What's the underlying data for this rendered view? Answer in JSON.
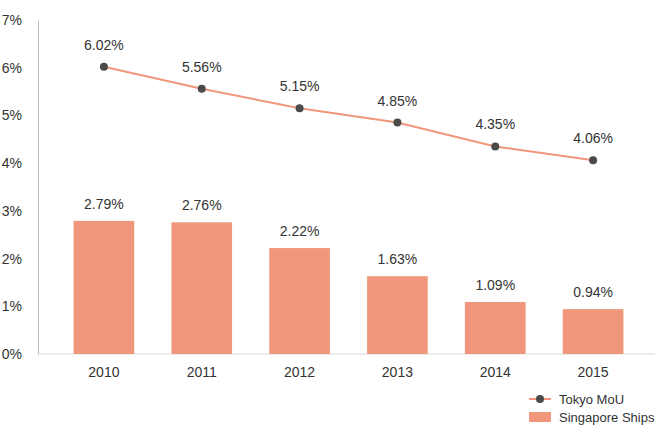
{
  "chart_data": {
    "type": "bar",
    "categories": [
      "2010",
      "2011",
      "2012",
      "2013",
      "2014",
      "2015"
    ],
    "series": [
      {
        "name": "Tokyo MoU",
        "type": "line",
        "color": "#f0967a",
        "marker": "circle",
        "values": [
          6.02,
          5.56,
          5.15,
          4.85,
          4.35,
          4.06
        ],
        "value_labels": [
          "6.02%",
          "5.56%",
          "5.15%",
          "4.85%",
          "4.35%",
          "4.06%"
        ]
      },
      {
        "name": "Singapore Ships",
        "type": "bar",
        "color": "#f0967a",
        "values": [
          2.79,
          2.76,
          2.22,
          1.63,
          1.09,
          0.94
        ],
        "value_labels": [
          "2.79%",
          "2.76%",
          "2.22%",
          "1.63%",
          "1.09%",
          "0.94%"
        ]
      }
    ],
    "ylim": [
      0,
      7
    ],
    "yticks": [
      {
        "value": 0,
        "label": "0%"
      },
      {
        "value": 1,
        "label": "1%"
      },
      {
        "value": 2,
        "label": "2%"
      },
      {
        "value": 3,
        "label": "3%"
      },
      {
        "value": 4,
        "label": "4%"
      },
      {
        "value": 5,
        "label": "5%"
      },
      {
        "value": 6,
        "label": "6%"
      },
      {
        "value": 7,
        "label": "7%"
      }
    ],
    "data_labels": true,
    "legend": "bottom right"
  }
}
